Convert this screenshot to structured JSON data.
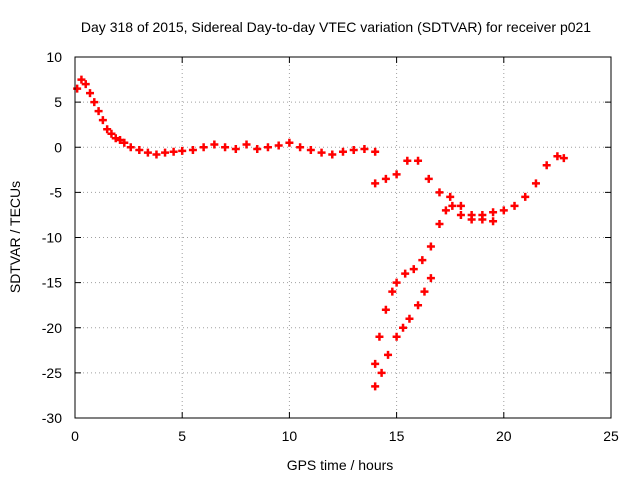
{
  "chart_data": {
    "type": "scatter",
    "title": "Day 318 of 2015, Sidereal Day-to-day VTEC variation (SDTVAR) for receiver p021",
    "xlabel": "GPS time / hours",
    "ylabel": "SDTVAR / TECUs",
    "xlim": [
      0,
      25
    ],
    "ylim": [
      -30,
      10
    ],
    "xticks": [
      0,
      5,
      10,
      15,
      20,
      25
    ],
    "yticks": [
      -30,
      -25,
      -20,
      -15,
      -10,
      -5,
      0,
      5,
      10
    ],
    "grid": true,
    "legend": "none",
    "marker": "+",
    "color": "#ff0000",
    "series": [
      {
        "name": "track-1",
        "x": [
          0.1,
          0.3,
          0.5,
          0.7,
          0.9,
          1.1,
          1.3,
          1.5,
          1.7,
          1.9,
          2.1,
          2.3,
          2.6,
          3.0,
          3.4,
          3.8,
          4.2,
          4.6,
          5.0,
          5.5,
          6.0,
          6.5,
          7.0,
          7.5,
          8.0,
          8.5,
          9.0,
          9.5,
          10.0,
          10.5,
          11.0,
          11.5,
          12.0,
          12.5,
          13.0,
          13.5,
          14.0
        ],
        "y": [
          6.5,
          7.5,
          7.0,
          6.0,
          5.0,
          4.0,
          3.0,
          2.0,
          1.5,
          1.0,
          0.8,
          0.5,
          0.0,
          -0.3,
          -0.6,
          -0.8,
          -0.6,
          -0.5,
          -0.4,
          -0.3,
          0.0,
          0.3,
          0.0,
          -0.2,
          0.3,
          -0.2,
          0.0,
          0.2,
          0.5,
          0.0,
          -0.3,
          -0.6,
          -0.8,
          -0.5,
          -0.3,
          -0.2,
          -0.5
        ]
      },
      {
        "name": "track-2",
        "x": [
          14.0,
          14.5,
          15.0,
          15.5,
          16.0,
          16.5,
          17.0,
          17.5,
          18.0,
          18.5,
          19.0,
          19.5
        ],
        "y": [
          -4.0,
          -3.5,
          -3.0,
          -1.5,
          -1.5,
          -3.5,
          -5.0,
          -5.5,
          -6.5,
          -7.5,
          -8.0,
          -8.2
        ]
      },
      {
        "name": "track-3",
        "x": [
          14.0,
          14.2,
          14.5,
          14.8,
          15.0,
          15.4,
          15.8,
          16.2,
          16.6,
          17.0,
          17.3,
          17.6,
          18.0,
          18.5,
          19.0,
          19.5,
          20.0,
          20.5,
          21.0,
          21.5,
          22.0,
          22.5,
          22.8
        ],
        "y": [
          -24.0,
          -21.0,
          -18.0,
          -16.0,
          -15.0,
          -14.0,
          -13.5,
          -12.5,
          -11.0,
          -8.5,
          -7.0,
          -6.5,
          -7.5,
          -8.0,
          -7.5,
          -7.2,
          -7.0,
          -6.5,
          -5.5,
          -4.0,
          -2.0,
          -1.0,
          -1.2
        ]
      },
      {
        "name": "track-4",
        "x": [
          14.0,
          14.3,
          14.6,
          15.0,
          15.3,
          15.6,
          16.0,
          16.3,
          16.6
        ],
        "y": [
          -26.5,
          -25.0,
          -23.0,
          -21.0,
          -20.0,
          -19.0,
          -17.5,
          -16.0,
          -14.5
        ]
      }
    ]
  }
}
